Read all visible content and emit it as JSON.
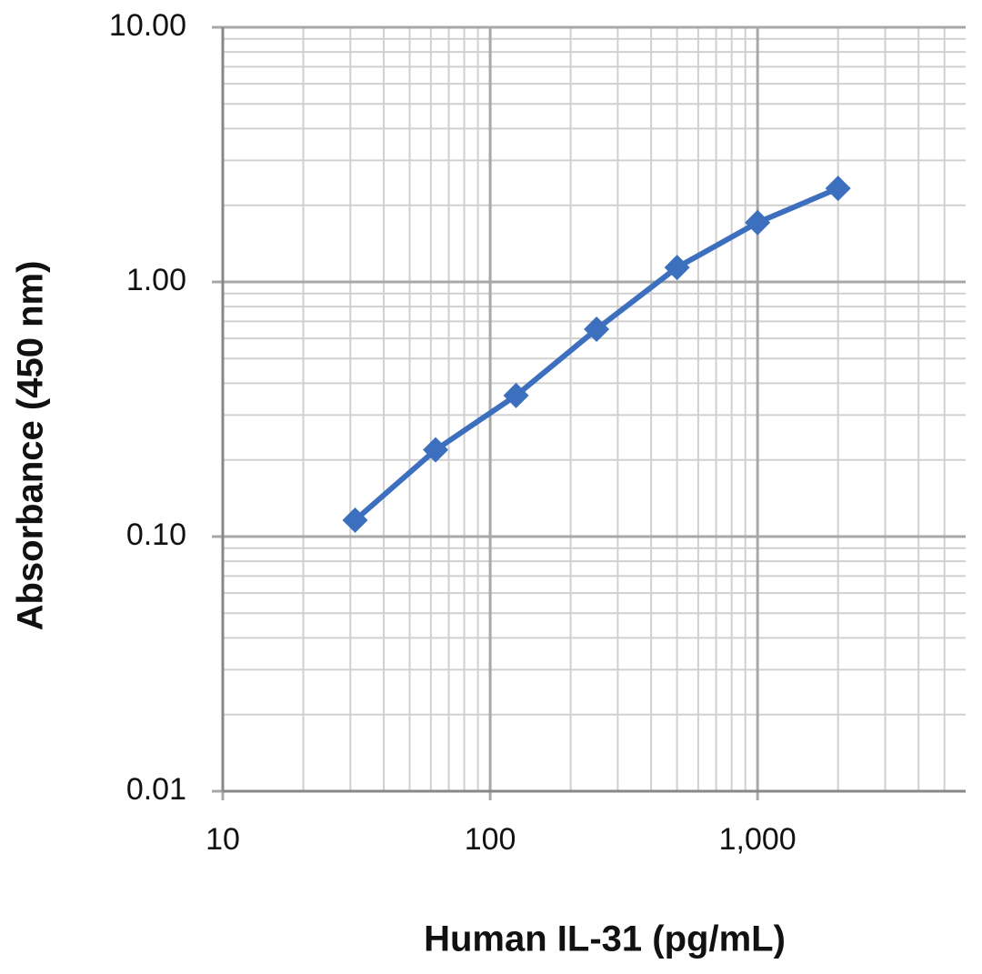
{
  "chart_data": {
    "type": "line",
    "x_label": "Human IL-31 (pg/mL)",
    "y_label": "Absorbance  (450 nm)",
    "x": [
      31.25,
      62.5,
      125,
      250,
      500,
      1000,
      2000
    ],
    "series": [
      {
        "color": "#3d6fbf",
        "values": [
          0.116,
          0.219,
          0.358,
          0.652,
          1.14,
          1.71,
          2.33
        ]
      }
    ],
    "xlim": [
      10,
      6000
    ],
    "ylim": [
      0.01,
      10
    ],
    "xticks": [
      10,
      100,
      {
        "value": 1000,
        "label": "1,000"
      }
    ],
    "yticks": [
      {
        "value": 0.01,
        "label": "0.01"
      },
      {
        "value": 0.1,
        "label": "0.10"
      },
      {
        "value": 1,
        "label": "1.00"
      },
      {
        "value": 10,
        "label": "10.00"
      }
    ],
    "xscale": "log",
    "yscale": "log",
    "grid": true,
    "minor_grid": true,
    "marker": "diamond"
  }
}
